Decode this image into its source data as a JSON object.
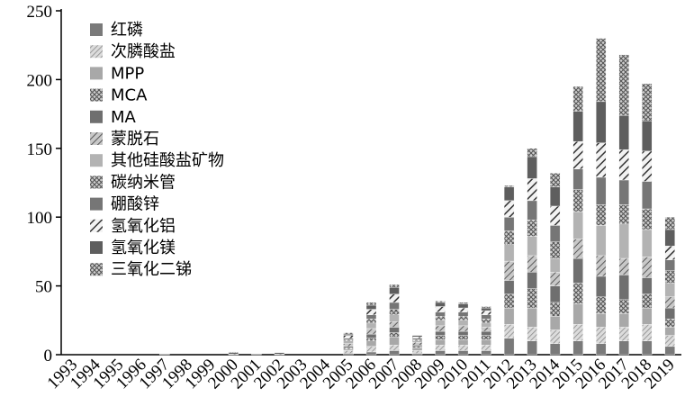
{
  "chart_data": {
    "type": "bar",
    "stacked": true,
    "title": "",
    "xlabel": "",
    "ylabel": "",
    "ylim": [
      0,
      250
    ],
    "yticks": [
      0,
      50,
      100,
      150,
      200,
      250
    ],
    "grid": false,
    "legend_position": "top-left",
    "categories": [
      "1993",
      "1994",
      "1995",
      "1996",
      "1997",
      "1998",
      "1999",
      "2000",
      "2001",
      "2002",
      "2003",
      "2004",
      "2005",
      "2006",
      "2007",
      "2008",
      "2009",
      "2010",
      "2011",
      "2012",
      "2013",
      "2014",
      "2015",
      "2016",
      "2017",
      "2018",
      "2019"
    ],
    "series": [
      {
        "name": "红磷",
        "color": "#7a7a7a",
        "pattern": "solid",
        "values": [
          0,
          0,
          0,
          0,
          0,
          0,
          0,
          0,
          0,
          0,
          0,
          0,
          1,
          2,
          3,
          1,
          3,
          3,
          3,
          12,
          10,
          8,
          10,
          8,
          10,
          10,
          6
        ]
      },
      {
        "name": "次膦酸盐",
        "color": "#bdbdbd",
        "pattern": "hatch-fine",
        "values": [
          0,
          0,
          0,
          0,
          0,
          0,
          0,
          0,
          0,
          0,
          0,
          0,
          2,
          4,
          4,
          2,
          4,
          4,
          4,
          10,
          10,
          10,
          12,
          12,
          10,
          12,
          8
        ]
      },
      {
        "name": "MPP",
        "color": "#a8a8a8",
        "pattern": "solid",
        "values": [
          0,
          0,
          0,
          0,
          0,
          0,
          0,
          0,
          0,
          0,
          0,
          0,
          1,
          4,
          6,
          2,
          4,
          4,
          4,
          12,
          14,
          10,
          15,
          10,
          10,
          12,
          6
        ]
      },
      {
        "name": "MCA",
        "color": "#8f8f8f",
        "pattern": "cross",
        "values": [
          0,
          0,
          0,
          0,
          0,
          0,
          0,
          0,
          0,
          0,
          0,
          0,
          1,
          2,
          3,
          1,
          3,
          3,
          3,
          10,
          14,
          10,
          15,
          12,
          10,
          10,
          6
        ]
      },
      {
        "name": "MA",
        "color": "#6f6f6f",
        "pattern": "solid",
        "values": [
          0,
          0,
          0,
          0,
          0,
          0,
          0,
          0,
          0,
          0,
          0,
          0,
          1,
          3,
          4,
          1,
          3,
          3,
          3,
          10,
          12,
          12,
          18,
          15,
          18,
          12,
          8
        ]
      },
      {
        "name": "蒙脱石",
        "color": "#9a9a9a",
        "pattern": "hatch",
        "values": [
          0,
          0,
          0,
          0,
          0,
          0,
          0,
          0,
          0,
          0,
          0,
          0,
          2,
          4,
          4,
          2,
          4,
          4,
          3,
          14,
          12,
          10,
          14,
          15,
          12,
          15,
          8
        ]
      },
      {
        "name": "其他硅酸盐矿物",
        "color": "#b3b3b3",
        "pattern": "solid",
        "values": [
          0,
          0,
          0,
          0,
          0,
          0,
          0,
          0,
          0,
          0,
          0,
          0,
          2,
          4,
          5,
          1,
          4,
          4,
          3,
          12,
          14,
          10,
          20,
          22,
          25,
          20,
          10
        ]
      },
      {
        "name": "碳纳米管",
        "color": "#a0a0a0",
        "pattern": "cross",
        "values": [
          0,
          0,
          0,
          0,
          0,
          0,
          0,
          0,
          0,
          0,
          0,
          0,
          1,
          3,
          4,
          1,
          3,
          3,
          3,
          10,
          12,
          12,
          16,
          15,
          14,
          15,
          9
        ]
      },
      {
        "name": "硼酸锌",
        "color": "#767676",
        "pattern": "solid",
        "values": [
          0,
          0,
          0,
          0,
          0,
          0,
          0,
          0,
          0,
          0,
          0,
          0,
          1,
          3,
          5,
          1,
          3,
          3,
          3,
          10,
          14,
          12,
          15,
          20,
          18,
          20,
          8
        ]
      },
      {
        "name": "氢氧化铝",
        "color": "#8a8a8a",
        "pattern": "hatch-bold",
        "values": [
          0,
          0,
          0,
          0,
          0,
          0,
          0,
          0.5,
          0,
          0.5,
          0,
          0,
          2,
          4,
          6,
          1,
          4,
          3,
          3,
          12,
          16,
          14,
          20,
          25,
          22,
          22,
          10
        ]
      },
      {
        "name": "氢氧化镁",
        "color": "#5e5e5e",
        "pattern": "solid",
        "values": [
          0,
          0,
          0,
          0,
          0.5,
          0,
          0,
          1,
          0.5,
          1,
          0,
          0,
          1,
          3,
          5,
          1,
          3,
          3,
          2,
          10,
          16,
          14,
          22,
          30,
          25,
          22,
          12
        ]
      },
      {
        "name": "三氧化二锑",
        "color": "#9e9e9e",
        "pattern": "cross",
        "values": [
          0,
          0,
          0,
          0,
          0,
          0,
          0,
          0.5,
          0,
          0,
          0,
          0,
          1,
          2,
          2,
          0,
          1,
          1,
          1,
          1,
          6,
          10,
          18,
          46,
          44,
          27,
          9
        ]
      }
    ]
  }
}
